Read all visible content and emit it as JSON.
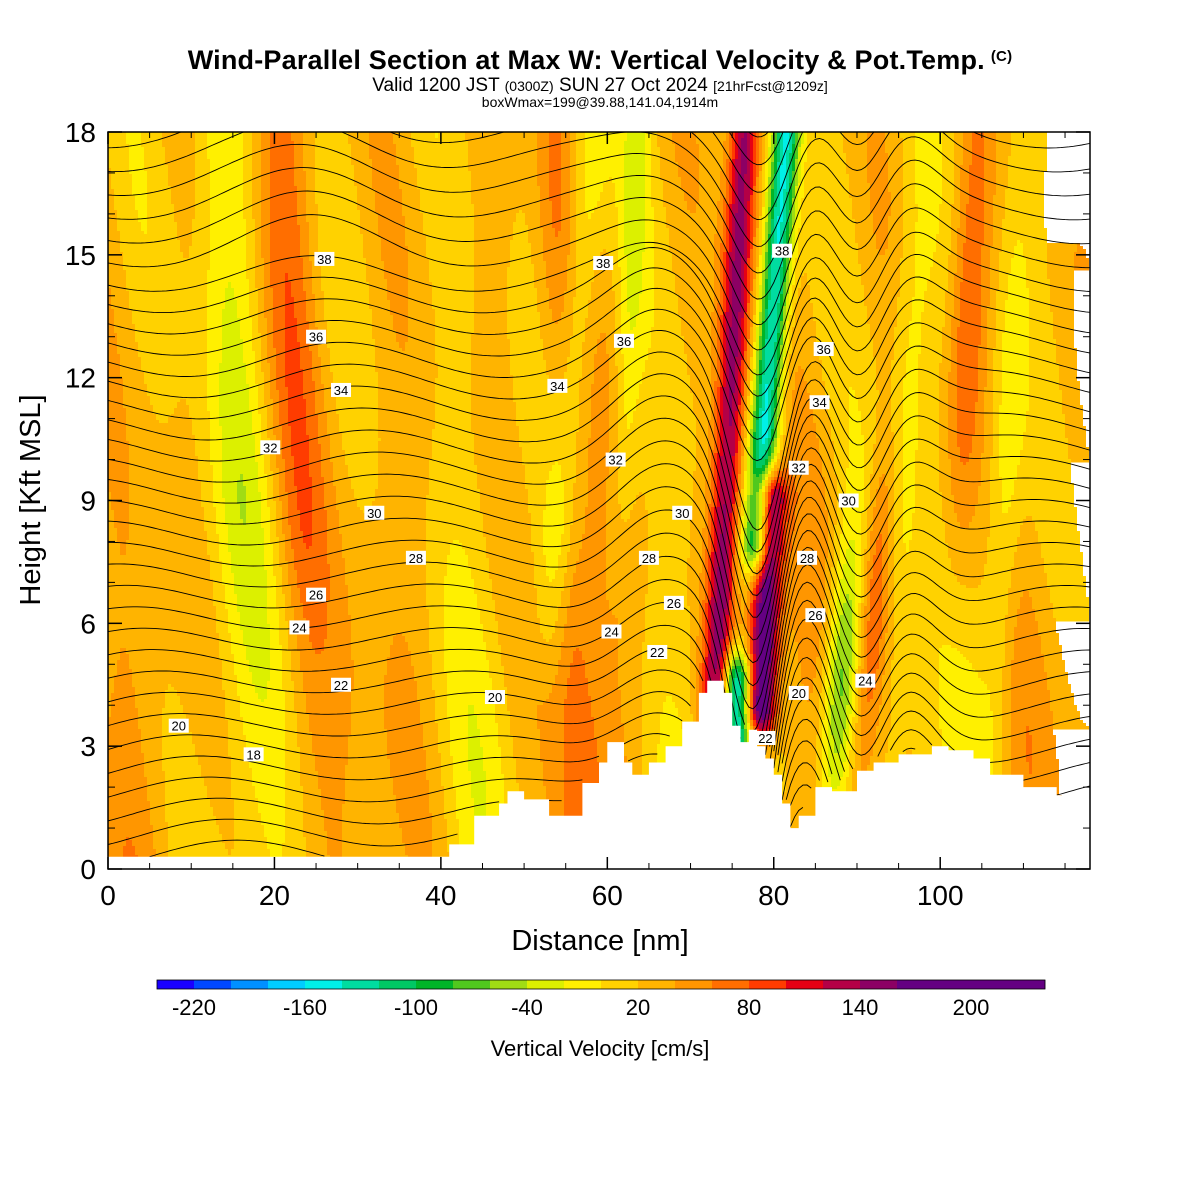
{
  "header": {
    "title": "Wind-Parallel Section at Max W: Vertical Velocity & Pot.Temp.",
    "title_mark": "(C)",
    "valid_prefix": "Valid 1200 JST",
    "valid_utc": "(0300Z)",
    "valid_date": "SUN 27 Oct 2024",
    "forecast": "[21hrFcst@1209z]",
    "box_info": "boxWmax=199@39.88,141.04,1914m"
  },
  "colors": {
    "scale": [
      "#1a00ff",
      "#0048ff",
      "#0090ff",
      "#00cdff",
      "#00f0e8",
      "#00dca0",
      "#00c864",
      "#00b428",
      "#50c81e",
      "#a0dc14",
      "#dcf000",
      "#fff000",
      "#ffd200",
      "#ffb400",
      "#ff9600",
      "#ff6e00",
      "#ff3c00",
      "#e60014",
      "#b40046",
      "#8c0064",
      "#640082"
    ],
    "terrain": "#ffffff",
    "contour": "#000000"
  },
  "chart_data": {
    "type": "heatmap",
    "xlabel": "Distance [nm]",
    "ylabel": "Height [Kft MSL]",
    "xlim": [
      0,
      118
    ],
    "ylim": [
      0,
      18
    ],
    "xticks": [
      0,
      20,
      40,
      60,
      80,
      100
    ],
    "yticks": [
      0,
      3,
      6,
      9,
      12,
      15,
      18
    ],
    "colorbar": {
      "label": "Vertical Velocity [cm/s]",
      "range": [
        -240,
        240
      ],
      "step": 20,
      "tick_labels": [
        "-220",
        "-160",
        "-100",
        "-40",
        "20",
        "80",
        "140",
        "200"
      ]
    },
    "terrain_profile": {
      "x": [
        0,
        40,
        41,
        44,
        47,
        48,
        50,
        53,
        57,
        59,
        60,
        62,
        63,
        65,
        67,
        69,
        71,
        72,
        74,
        75,
        76,
        77,
        78,
        79,
        80,
        81,
        82,
        83,
        85,
        87,
        90,
        92,
        95,
        99,
        101,
        104,
        106,
        110,
        114,
        116,
        118
      ],
      "y": [
        0.3,
        0.3,
        0.6,
        1.3,
        1.6,
        1.9,
        1.7,
        1.3,
        2.1,
        2.6,
        3.1,
        2.6,
        2.3,
        2.6,
        3.0,
        3.6,
        4.3,
        4.6,
        4.3,
        3.5,
        3.1,
        3.4,
        3.0,
        2.7,
        2.3,
        1.6,
        1.0,
        1.3,
        2.0,
        1.9,
        2.4,
        2.6,
        2.8,
        3.0,
        2.9,
        2.7,
        2.3,
        2.0,
        1.8,
        1.6,
        1.3
      ]
    },
    "theta_contours": {
      "levels": [
        18,
        20,
        22,
        24,
        26,
        28,
        30,
        32,
        34,
        36,
        38
      ],
      "labels": [
        {
          "text": "20",
          "x": 8.5,
          "y": 3.5
        },
        {
          "text": "18",
          "x": 17.5,
          "y": 2.8
        },
        {
          "text": "22",
          "x": 28,
          "y": 4.5
        },
        {
          "text": "24",
          "x": 23,
          "y": 5.9
        },
        {
          "text": "26",
          "x": 25,
          "y": 6.7
        },
        {
          "text": "28",
          "x": 37,
          "y": 7.6
        },
        {
          "text": "30",
          "x": 32,
          "y": 8.7
        },
        {
          "text": "32",
          "x": 19.5,
          "y": 10.3
        },
        {
          "text": "34",
          "x": 28,
          "y": 11.7
        },
        {
          "text": "36",
          "x": 25,
          "y": 13
        },
        {
          "text": "38",
          "x": 26,
          "y": 14.9
        },
        {
          "text": "20",
          "x": 46.5,
          "y": 4.2
        },
        {
          "text": "22",
          "x": 66,
          "y": 5.3
        },
        {
          "text": "24",
          "x": 60.5,
          "y": 5.8
        },
        {
          "text": "26",
          "x": 68,
          "y": 6.5
        },
        {
          "text": "28",
          "x": 65,
          "y": 7.6
        },
        {
          "text": "30",
          "x": 69,
          "y": 8.7
        },
        {
          "text": "32",
          "x": 61,
          "y": 10
        },
        {
          "text": "34",
          "x": 54,
          "y": 11.8
        },
        {
          "text": "36",
          "x": 62,
          "y": 12.9
        },
        {
          "text": "38",
          "x": 59.5,
          "y": 14.8
        },
        {
          "text": "22",
          "x": 79,
          "y": 3.2
        },
        {
          "text": "20",
          "x": 83,
          "y": 4.3
        },
        {
          "text": "24",
          "x": 91,
          "y": 4.6
        },
        {
          "text": "26",
          "x": 85,
          "y": 6.2
        },
        {
          "text": "28",
          "x": 84,
          "y": 7.6
        },
        {
          "text": "30",
          "x": 89,
          "y": 9
        },
        {
          "text": "32",
          "x": 83,
          "y": 9.8
        },
        {
          "text": "34",
          "x": 85.5,
          "y": 11.4
        },
        {
          "text": "36",
          "x": 86,
          "y": 12.7
        },
        {
          "text": "38",
          "x": 81,
          "y": 15.1
        }
      ]
    },
    "vertical_velocity_features": [
      {
        "type": "updraft",
        "x_bottom": 73,
        "x_top": 76.5,
        "z_bottom": 4,
        "z_top": 18,
        "w_max": 140
      },
      {
        "type": "updraft",
        "x_bottom": 78.5,
        "x_top": 79.5,
        "z_bottom": 4,
        "z_top": 9,
        "w_max": 199
      },
      {
        "type": "downdraft",
        "x_bottom": 78,
        "x_top": 81.5,
        "z_bottom": 8,
        "z_top": 18,
        "w_min": -180
      },
      {
        "type": "downdraft",
        "x_bottom": 75.5,
        "x_top": 75.5,
        "z_bottom": 3.2,
        "z_top": 4.5,
        "w_min": -190
      }
    ]
  }
}
